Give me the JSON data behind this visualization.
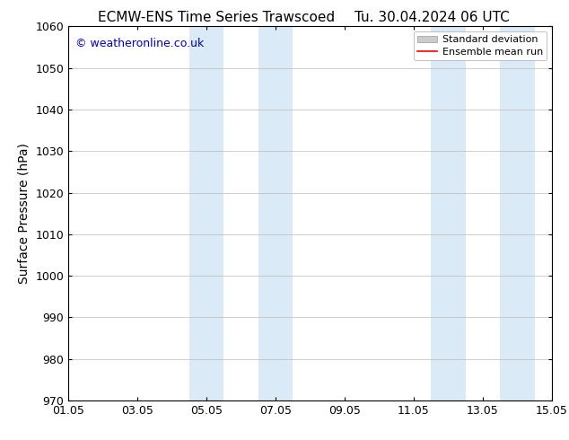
{
  "title_left": "ECMW-ENS Time Series Trawscoed",
  "title_right": "Tu. 30.04.2024 06 UTC",
  "ylabel": "Surface Pressure (hPa)",
  "ylim": [
    970,
    1060
  ],
  "yticks": [
    970,
    980,
    990,
    1000,
    1010,
    1020,
    1030,
    1040,
    1050,
    1060
  ],
  "xtick_labels": [
    "01.05",
    "03.05",
    "05.05",
    "07.05",
    "09.05",
    "11.05",
    "13.05",
    "15.05"
  ],
  "xtick_positions": [
    0,
    2,
    4,
    6,
    8,
    10,
    12,
    14
  ],
  "shaded_bands": [
    {
      "x_start": 3.5,
      "x_end": 4.5
    },
    {
      "x_start": 5.5,
      "x_end": 6.5
    },
    {
      "x_start": 10.5,
      "x_end": 11.5
    },
    {
      "x_start": 12.5,
      "x_end": 13.5
    }
  ],
  "shaded_color": "#daeaf7",
  "watermark_text": "© weatheronline.co.uk",
  "watermark_color": "#0000cc",
  "legend_entries": [
    "Standard deviation",
    "Ensemble mean run"
  ],
  "legend_std_color": "#cccccc",
  "legend_ens_color": "#ff0000",
  "background_color": "#ffffff",
  "grid_color": "#bbbbbb",
  "title_fontsize": 11,
  "axis_label_fontsize": 10,
  "tick_fontsize": 9,
  "watermark_fontsize": 9
}
